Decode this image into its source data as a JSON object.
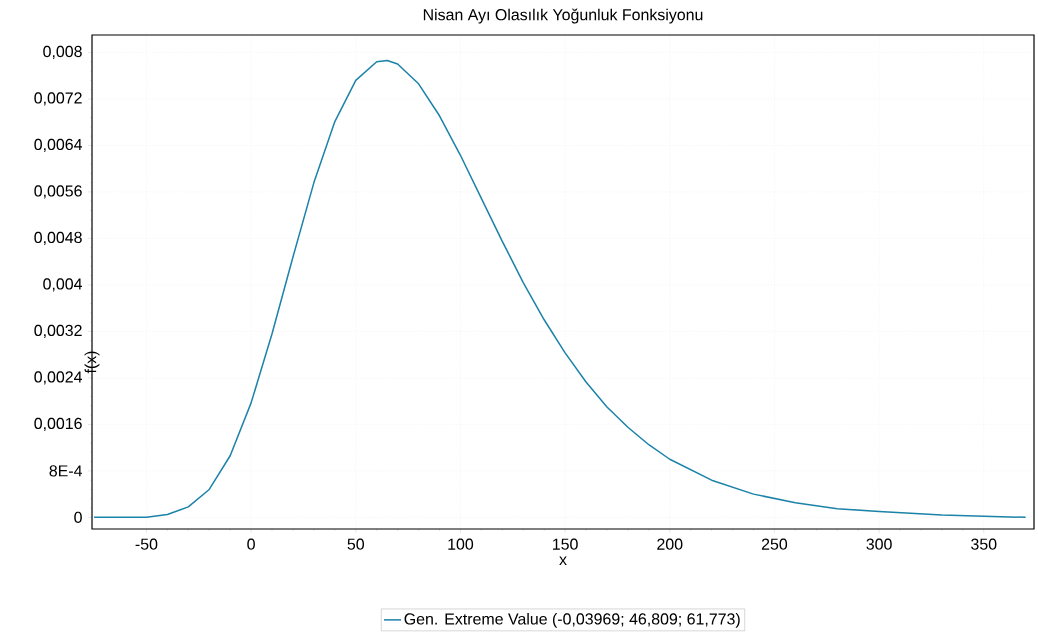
{
  "chart_data": {
    "type": "line",
    "title": "Nisan Ayı Olasılık Yoğunluk Fonksiyonu",
    "xlabel": "x",
    "ylabel": "f(x)",
    "x": [
      -75,
      -60,
      -50,
      -40,
      -30,
      -20,
      -10,
      0,
      10,
      20,
      30,
      40,
      50,
      60,
      65,
      70,
      80,
      90,
      100,
      110,
      120,
      130,
      140,
      150,
      160,
      170,
      180,
      190,
      200,
      220,
      240,
      260,
      280,
      300,
      330,
      370
    ],
    "series": [
      {
        "name": "Gen. Extreme Value  (-0,03969; 46,809; 61,773)",
        "color": "#1b82a8",
        "values": [
          0,
          0,
          0,
          5e-05,
          0.00018,
          0.00048,
          0.00106,
          0.00197,
          0.00316,
          0.00448,
          0.00576,
          0.00681,
          0.00752,
          0.00784,
          0.00786,
          0.0078,
          0.00746,
          0.00691,
          0.00623,
          0.00549,
          0.00475,
          0.00404,
          0.0034,
          0.00283,
          0.00233,
          0.0019,
          0.00155,
          0.00125,
          0.001,
          0.00064,
          0.0004,
          0.00025,
          0.00015,
          0.0001,
          4e-05,
          0
        ]
      }
    ],
    "xlim": [
      -76,
      374
    ],
    "ylim": [
      -0.0002,
      0.0083
    ],
    "xticks": [
      -50,
      0,
      50,
      100,
      150,
      200,
      250,
      300,
      350
    ],
    "yticks": [
      {
        "value": 0,
        "label": "0"
      },
      {
        "value": 0.0008,
        "label": "8E-4"
      },
      {
        "value": 0.0016,
        "label": "0,0016"
      },
      {
        "value": 0.0024,
        "label": "0,0024"
      },
      {
        "value": 0.0032,
        "label": "0,0032"
      },
      {
        "value": 0.004,
        "label": "0,004"
      },
      {
        "value": 0.0048,
        "label": "0,0048"
      },
      {
        "value": 0.0056,
        "label": "0,0056"
      },
      {
        "value": 0.0064,
        "label": "0,0064"
      },
      {
        "value": 0.0072,
        "label": "0,0072"
      },
      {
        "value": 0.008,
        "label": "0,008"
      }
    ],
    "grid": true,
    "legend": "bottom",
    "line_style": "solid",
    "marker": "none"
  }
}
